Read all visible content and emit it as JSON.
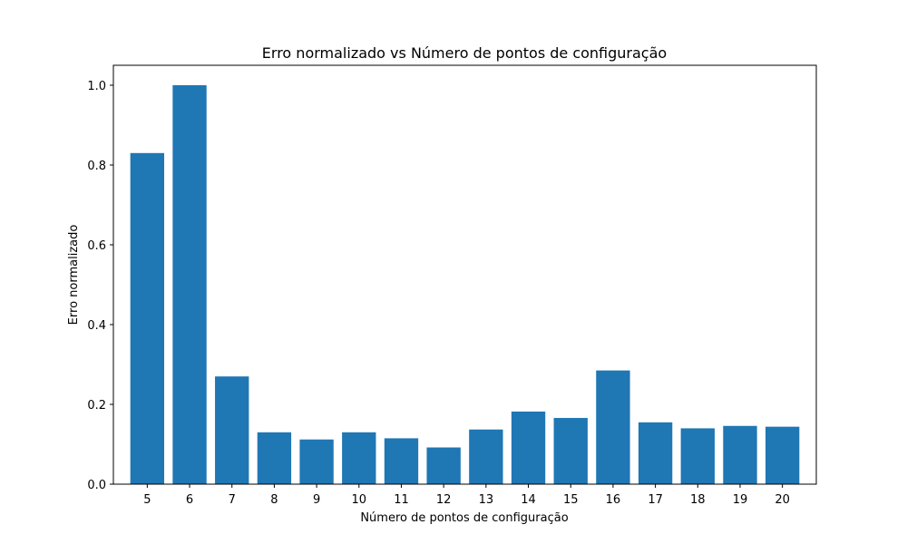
{
  "chart_data": {
    "type": "bar",
    "title": "Erro normalizado vs Número de pontos de configuração",
    "xlabel": "Número de pontos de configuração",
    "ylabel": "Erro normalizado",
    "categories": [
      "5",
      "6",
      "7",
      "8",
      "9",
      "10",
      "11",
      "12",
      "13",
      "14",
      "15",
      "16",
      "17",
      "18",
      "19",
      "20"
    ],
    "values": [
      0.83,
      1.0,
      0.27,
      0.13,
      0.112,
      0.13,
      0.115,
      0.092,
      0.137,
      0.182,
      0.166,
      0.285,
      0.155,
      0.14,
      0.146,
      0.144
    ],
    "ylim": [
      0,
      1.05
    ],
    "yticks": [
      "0.0",
      "0.2",
      "0.4",
      "0.6",
      "0.8",
      "1.0"
    ],
    "bar_color": "#1f77b4",
    "grid": false,
    "legend": "none"
  }
}
